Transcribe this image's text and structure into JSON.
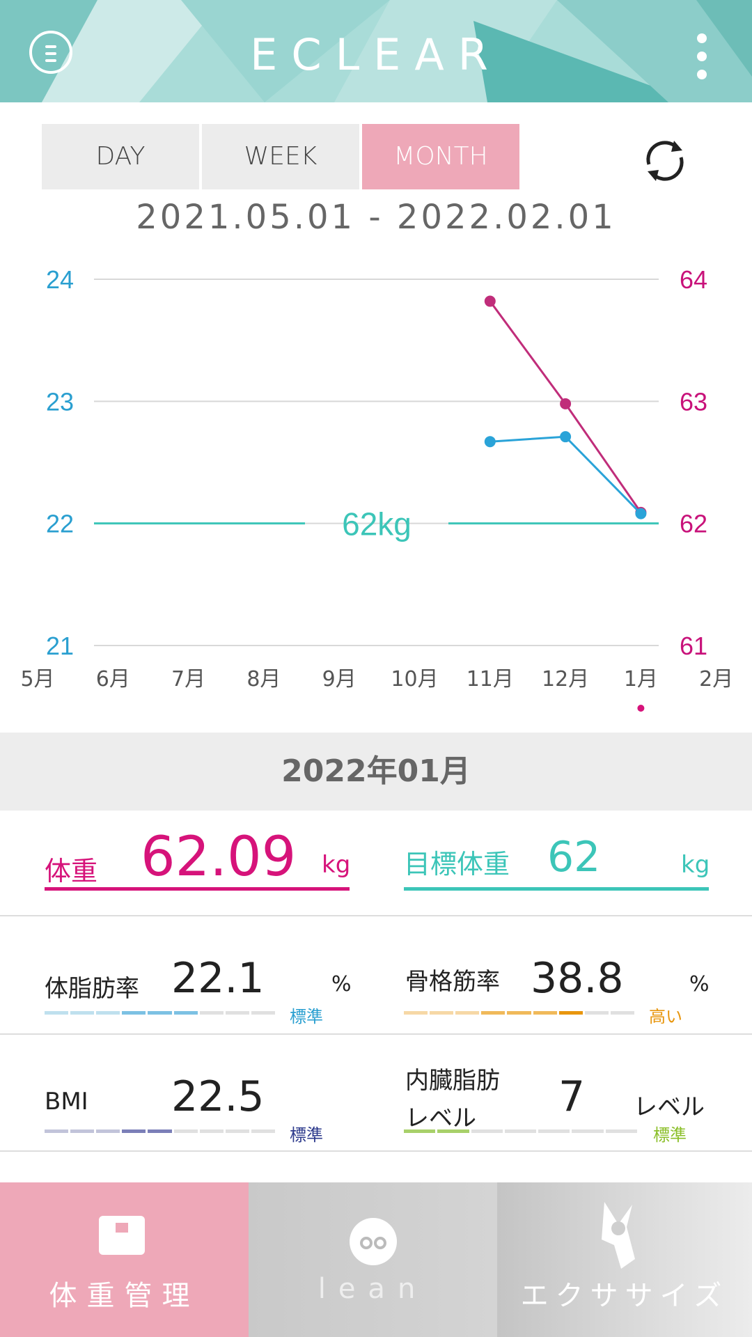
{
  "header": {
    "title": "ECLEAR"
  },
  "tabs": [
    {
      "label": "DAY",
      "active": false
    },
    {
      "label": "WEEK",
      "active": false
    },
    {
      "label": "MONTH",
      "active": true
    }
  ],
  "date_range": "2021.05.01 - 2022.02.01",
  "chart_data": {
    "type": "line",
    "x": [
      "5月",
      "6月",
      "7月",
      "8月",
      "9月",
      "10月",
      "11月",
      "12月",
      "1月",
      "2月"
    ],
    "y_left": {
      "ticks": [
        24,
        23,
        22,
        21
      ],
      "range": [
        21,
        24
      ],
      "color": "#2a9fd0"
    },
    "y_right": {
      "ticks": [
        64,
        63,
        62,
        61
      ],
      "range": [
        61,
        64
      ],
      "color": "#c8127a"
    },
    "series": [
      {
        "axis": "right",
        "color": "#c02d7a",
        "points": [
          [
            "11月",
            63.82
          ],
          [
            "12月",
            62.98
          ],
          [
            "1月",
            62.09
          ]
        ]
      },
      {
        "axis": "left",
        "color": "#2aa3d8",
        "points": [
          [
            "11月",
            22.67
          ],
          [
            "12月",
            22.71
          ],
          [
            "1月",
            22.08
          ]
        ]
      }
    ],
    "target_line": {
      "value": 62,
      "label": "62kg",
      "color": "#3cc5b8"
    },
    "selected": "1月",
    "grid": true
  },
  "selected_month": "2022年01月",
  "weight": {
    "label": "体重",
    "value": "62.09",
    "unit": "kg"
  },
  "target_weight": {
    "label": "目標体重",
    "value": "62",
    "unit": "kg"
  },
  "body_fat": {
    "label": "体脂肪率",
    "value": "22.1",
    "unit": "%",
    "status": "標準"
  },
  "muscle": {
    "label": "骨格筋率",
    "value": "38.8",
    "unit": "%",
    "status": "高い"
  },
  "bmi": {
    "label": "BMI",
    "value": "22.5",
    "status": "標準"
  },
  "visceral": {
    "label_line1": "内臓脂肪",
    "label_line2": "レベル",
    "value": "7",
    "unit": "レベル",
    "status": "標準"
  },
  "nav": [
    {
      "label": "体重管理",
      "icon": "scale-icon",
      "active": true
    },
    {
      "label": "lean",
      "icon": "lean-icon",
      "active": false
    },
    {
      "label": "エクササイズ",
      "icon": "exercise-icon",
      "active": false
    }
  ],
  "colors": {
    "accent_pink": "#d6137a",
    "accent_teal": "#3cc5b8",
    "tab_active": "#eea8b8"
  }
}
